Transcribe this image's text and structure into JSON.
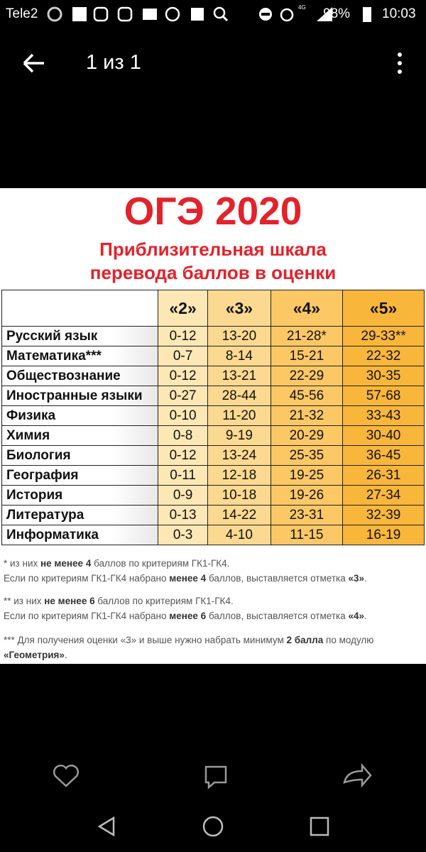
{
  "status_bar": {
    "carrier": "Tele2",
    "battery": "98%",
    "network": "4G",
    "time": "10:03"
  },
  "app_bar": {
    "title": "1 из 1"
  },
  "image": {
    "title": "ОГЭ 2020",
    "subtitle_lines": [
      "Приблизительная шкала",
      "перевода баллов в оценки"
    ],
    "table": {
      "headers": [
        "«2»",
        "«3»",
        "«4»",
        "«5»"
      ],
      "rows": [
        [
          "Русский язык",
          "0-12",
          "13-20",
          "21-28*",
          "29-33**"
        ],
        [
          "Математика***",
          "0-7",
          "8-14",
          "15-21",
          "22-32"
        ],
        [
          "Обществознание",
          "0-12",
          "13-21",
          "22-29",
          "30-35"
        ],
        [
          "Иностранные языки",
          "0-27",
          "28-44",
          "45-56",
          "57-68"
        ],
        [
          "Физика",
          "0-10",
          "11-20",
          "21-32",
          "33-43"
        ],
        [
          "Химия",
          "0-8",
          "9-19",
          "20-29",
          "30-40"
        ],
        [
          "Биология",
          "0-12",
          "13-24",
          "25-35",
          "36-45"
        ],
        [
          "География",
          "0-11",
          "12-18",
          "19-25",
          "26-31"
        ],
        [
          "История",
          "0-9",
          "10-18",
          "19-26",
          "27-34"
        ],
        [
          "Литература",
          "0-13",
          "14-22",
          "23-31",
          "32-39"
        ],
        [
          "Информатика",
          "0-3",
          "4-10",
          "11-15",
          "16-19"
        ]
      ]
    },
    "notes": [
      [
        [
          "* из них ",
          "не менее 4",
          " баллов по критериям ГК1-ГК4."
        ],
        [
          "Если по критериям ГК1-ГК4 набрано ",
          "менее 4",
          " баллов, выставляется отметка ",
          "«3»",
          "."
        ]
      ],
      [
        [
          "** из них ",
          "не менее 6",
          " баллов по критериям ГК1-ГК4."
        ],
        [
          "Если по критериям ГК1-ГК4 набрано ",
          "менее 6",
          " баллов, выставляется отметка ",
          "«4»",
          "."
        ]
      ],
      [
        [
          "*** Для получения оценки «3» и выше нужно набрать минимум ",
          "2 балла",
          " по модулю ",
          "«Геометрия»",
          "."
        ]
      ]
    ]
  }
}
